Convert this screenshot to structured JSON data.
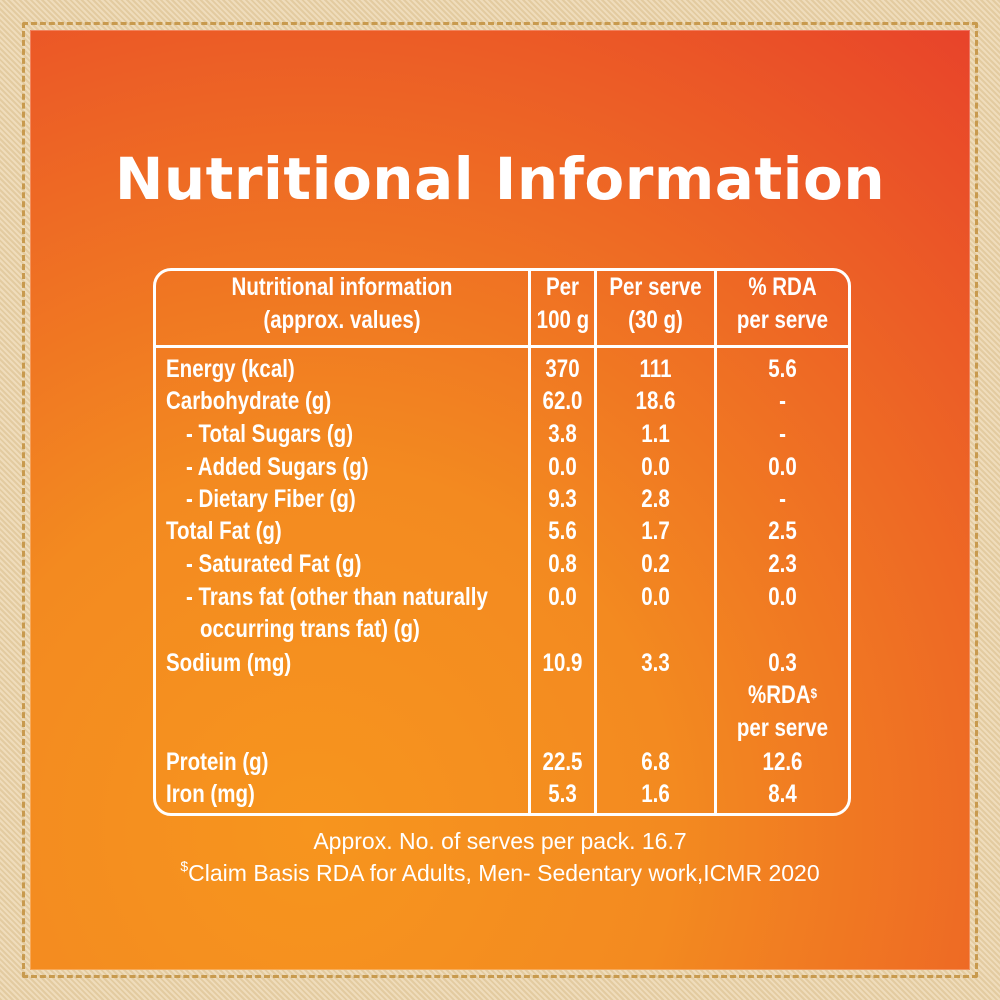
{
  "title": "Nutritional Information",
  "header": {
    "col1_line1": "Nutritional information",
    "col1_line2": "(approx. values)",
    "col2_line1": "Per",
    "col2_line2": "100 g",
    "col3_line1": "Per serve",
    "col3_line2": "(30 g)",
    "col4_line1": "% RDA",
    "col4_line2": "per serve"
  },
  "rows": [
    {
      "label": "Energy (kcal)",
      "per100": "370",
      "perServe": "111",
      "rda": "5.6"
    },
    {
      "label": "Carbohydrate (g)",
      "per100": "62.0",
      "perServe": "18.6",
      "rda": "-"
    },
    {
      "label": "- Total Sugars (g)",
      "per100": "3.8",
      "perServe": "1.1",
      "rda": "-"
    },
    {
      "label": "- Added Sugars (g)",
      "per100": "0.0",
      "perServe": "0.0",
      "rda": "0.0"
    },
    {
      "label": "- Dietary Fiber (g)",
      "per100": "9.3",
      "perServe": "2.8",
      "rda": "-"
    },
    {
      "label": "Total Fat (g)",
      "per100": "5.6",
      "perServe": "1.7",
      "rda": "2.5"
    },
    {
      "label": "- Saturated Fat (g)",
      "per100": "0.8",
      "perServe": "0.2",
      "rda": "2.3"
    },
    {
      "label": "- Trans fat (other than naturally",
      "label2": "occurring trans fat) (g)",
      "per100": "0.0",
      "perServe": "0.0",
      "rda": "0.0"
    },
    {
      "label": "Sodium (mg)",
      "per100": "10.9",
      "perServe": "3.3",
      "rda": "0.3"
    },
    {
      "label": "Protein (g)",
      "per100": "22.5",
      "perServe": "6.8",
      "rda": "12.6"
    },
    {
      "label": "Iron (mg)",
      "per100": "5.3",
      "perServe": "1.6",
      "rda": "8.4"
    }
  ],
  "subheader": {
    "line1": "%RDA",
    "line1_sup": "$",
    "line2": "per serve"
  },
  "footer": {
    "serves": "Approx. No. of serves per pack. 16.7",
    "claim_sup": "$",
    "claim": "Claim Basis RDA for Adults, Men- Sedentary work,ICMR 2020"
  },
  "colors": {
    "panel_top": "#e8432a",
    "panel_bottom": "#f7951e",
    "text": "#ffffff",
    "frame": "#e8d3ae"
  }
}
